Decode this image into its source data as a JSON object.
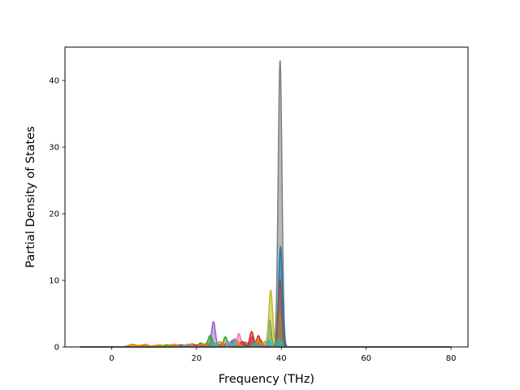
{
  "chart_data": {
    "type": "area",
    "title": "",
    "xlabel": "Frequency (THz)",
    "ylabel": "Partial Density of States",
    "xlim": [
      -11.0,
      84.0
    ],
    "ylim": [
      0,
      45
    ],
    "xticks": [
      0,
      20,
      40,
      60,
      80
    ],
    "yticks": [
      0,
      10,
      20,
      30,
      40
    ],
    "x_tick_labels": [
      "0",
      "20",
      "40",
      "60",
      "80"
    ],
    "y_tick_labels": [
      "0",
      "10",
      "20",
      "30",
      "40"
    ],
    "grid": false,
    "legend": "none",
    "baseline_range": [
      -7.5,
      80.0
    ],
    "series": [
      {
        "color": "#7f7f7f",
        "peaks": [
          [
            39.7,
            43.0,
            0.45
          ],
          [
            23.5,
            0.3,
            0.5
          ],
          [
            28.0,
            0.3,
            0.5
          ],
          [
            33.0,
            0.4,
            0.5
          ],
          [
            36.8,
            0.3,
            0.4
          ]
        ]
      },
      {
        "color": "#1f77b4",
        "peaks": [
          [
            39.8,
            15.0,
            0.45
          ],
          [
            37.2,
            4.0,
            0.4
          ],
          [
            21.0,
            0.6,
            0.5
          ],
          [
            25.0,
            0.4,
            0.5
          ],
          [
            28.5,
            1.0,
            0.5
          ],
          [
            31.0,
            0.6,
            0.5
          ],
          [
            12.0,
            0.2,
            0.8
          ],
          [
            16.0,
            0.3,
            0.8
          ]
        ]
      },
      {
        "color": "#bcbd22",
        "peaks": [
          [
            37.5,
            8.5,
            0.45
          ],
          [
            39.6,
            5.3,
            0.35
          ],
          [
            5.0,
            0.4,
            0.8
          ],
          [
            8.0,
            0.4,
            0.8
          ],
          [
            11.5,
            0.3,
            0.8
          ],
          [
            15.0,
            0.4,
            0.8
          ],
          [
            19.0,
            0.5,
            0.7
          ],
          [
            22.5,
            0.6,
            0.6
          ],
          [
            27.0,
            0.5,
            0.6
          ],
          [
            33.5,
            0.6,
            0.5
          ]
        ]
      },
      {
        "color": "#8c564b",
        "peaks": [
          [
            39.7,
            10.0,
            0.4
          ],
          [
            33.2,
            1.5,
            0.5
          ],
          [
            18.0,
            0.3,
            0.8
          ],
          [
            22.0,
            0.4,
            0.6
          ],
          [
            26.0,
            0.5,
            0.6
          ]
        ]
      },
      {
        "color": "#9467bd",
        "peaks": [
          [
            24.0,
            3.8,
            0.45
          ],
          [
            29.0,
            1.2,
            0.5
          ],
          [
            14.0,
            0.3,
            0.8
          ],
          [
            19.0,
            0.4,
            0.7
          ],
          [
            34.0,
            0.8,
            0.5
          ]
        ]
      },
      {
        "color": "#2ca02c",
        "peaks": [
          [
            23.2,
            1.7,
            0.5
          ],
          [
            26.8,
            1.5,
            0.45
          ],
          [
            21.0,
            0.5,
            0.6
          ],
          [
            31.5,
            0.7,
            0.5
          ],
          [
            35.0,
            1.1,
            0.5
          ],
          [
            8.0,
            0.2,
            0.8
          ],
          [
            13.0,
            0.3,
            0.8
          ]
        ]
      },
      {
        "color": "#e377c2",
        "peaks": [
          [
            30.0,
            2.0,
            0.45
          ],
          [
            27.5,
            0.8,
            0.5
          ],
          [
            32.5,
            0.8,
            0.5
          ],
          [
            24.5,
            0.5,
            0.6
          ],
          [
            10.0,
            0.2,
            0.8
          ]
        ]
      },
      {
        "color": "#d62728",
        "peaks": [
          [
            33.0,
            2.3,
            0.45
          ],
          [
            34.6,
            1.7,
            0.4
          ],
          [
            30.8,
            0.8,
            0.5
          ],
          [
            26.0,
            0.4,
            0.6
          ],
          [
            20.0,
            0.3,
            0.7
          ],
          [
            16.5,
            0.3,
            0.8
          ]
        ]
      },
      {
        "color": "#ff7f0e",
        "peaks": [
          [
            4.8,
            0.35,
            1.0
          ],
          [
            7.5,
            0.3,
            0.9
          ],
          [
            11.0,
            0.3,
            0.9
          ],
          [
            14.5,
            0.35,
            0.9
          ],
          [
            18.0,
            0.4,
            0.8
          ],
          [
            21.5,
            0.5,
            0.7
          ],
          [
            25.5,
            0.8,
            0.6
          ],
          [
            29.5,
            0.9,
            0.6
          ],
          [
            34.5,
            1.0,
            0.5
          ],
          [
            36.2,
            0.8,
            0.5
          ]
        ]
      },
      {
        "color": "#17becf",
        "peaks": [
          [
            24.5,
            0.5,
            0.6
          ],
          [
            28.5,
            0.8,
            0.6
          ],
          [
            33.8,
            0.6,
            0.5
          ],
          [
            37.0,
            1.0,
            0.4
          ],
          [
            39.5,
            1.2,
            0.4
          ],
          [
            17.0,
            0.2,
            0.8
          ]
        ]
      }
    ]
  }
}
